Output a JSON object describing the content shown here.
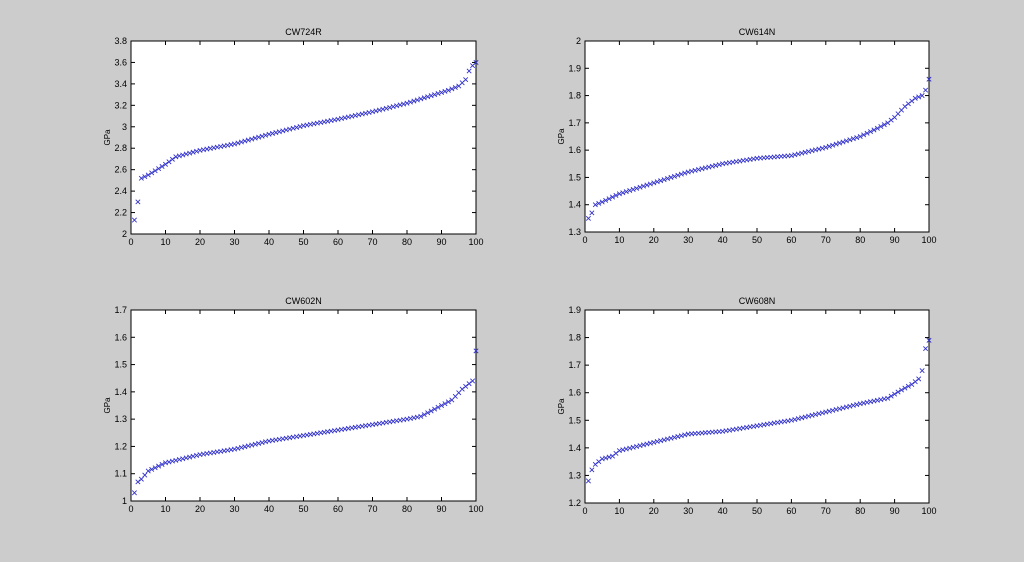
{
  "figure": {
    "background": "#cccccc",
    "marker_color": "#3333cc",
    "marker": "x"
  },
  "chart_data": [
    {
      "type": "scatter",
      "title": "CW724R",
      "ylabel": "GPa",
      "xlabel": "",
      "xlim": [
        0,
        100
      ],
      "ylim": [
        2,
        3.8
      ],
      "xticks": [
        0,
        10,
        20,
        30,
        40,
        50,
        60,
        70,
        80,
        90,
        100
      ],
      "yticks": [
        2,
        2.2,
        2.4,
        2.6,
        2.8,
        3,
        3.2,
        3.4,
        3.6,
        3.8
      ],
      "ytick_labels": [
        "2",
        "2.2",
        "2.4",
        "2.6",
        "2.8",
        "3",
        "3.2",
        "3.4",
        "3.6",
        "3.8"
      ],
      "anchors": [
        [
          1,
          2.13
        ],
        [
          2,
          2.3
        ],
        [
          3,
          2.52
        ],
        [
          5,
          2.55
        ],
        [
          10,
          2.65
        ],
        [
          13,
          2.72
        ],
        [
          20,
          2.78
        ],
        [
          30,
          2.84
        ],
        [
          40,
          2.93
        ],
        [
          50,
          3.01
        ],
        [
          60,
          3.07
        ],
        [
          70,
          3.14
        ],
        [
          80,
          3.22
        ],
        [
          88,
          3.3
        ],
        [
          92,
          3.34
        ],
        [
          95,
          3.38
        ],
        [
          97,
          3.44
        ],
        [
          98,
          3.52
        ],
        [
          99,
          3.57
        ],
        [
          100,
          3.6
        ]
      ]
    },
    {
      "type": "scatter",
      "title": "CW614N",
      "ylabel": "GPa",
      "xlabel": "",
      "xlim": [
        0,
        100
      ],
      "ylim": [
        1.3,
        2
      ],
      "xticks": [
        0,
        10,
        20,
        30,
        40,
        50,
        60,
        70,
        80,
        90,
        100
      ],
      "yticks": [
        1.3,
        1.4,
        1.5,
        1.6,
        1.7,
        1.8,
        1.9,
        2
      ],
      "ytick_labels": [
        "1.3",
        "1.4",
        "1.5",
        "1.6",
        "1.7",
        "1.8",
        "1.9",
        "2"
      ],
      "anchors": [
        [
          1,
          1.35
        ],
        [
          2,
          1.37
        ],
        [
          3,
          1.4
        ],
        [
          5,
          1.41
        ],
        [
          10,
          1.44
        ],
        [
          20,
          1.48
        ],
        [
          30,
          1.52
        ],
        [
          40,
          1.55
        ],
        [
          50,
          1.57
        ],
        [
          60,
          1.58
        ],
        [
          70,
          1.61
        ],
        [
          80,
          1.65
        ],
        [
          85,
          1.68
        ],
        [
          88,
          1.7
        ],
        [
          90,
          1.72
        ],
        [
          93,
          1.76
        ],
        [
          96,
          1.79
        ],
        [
          98,
          1.8
        ],
        [
          99,
          1.82
        ],
        [
          100,
          1.86
        ]
      ]
    },
    {
      "type": "scatter",
      "title": "CW602N",
      "ylabel": "GPa",
      "xlabel": "",
      "xlim": [
        0,
        100
      ],
      "ylim": [
        1,
        1.7
      ],
      "xticks": [
        0,
        10,
        20,
        30,
        40,
        50,
        60,
        70,
        80,
        90,
        100
      ],
      "yticks": [
        1,
        1.1,
        1.2,
        1.3,
        1.4,
        1.5,
        1.6,
        1.7
      ],
      "ytick_labels": [
        "1",
        "1.1",
        "1.2",
        "1.3",
        "1.4",
        "1.5",
        "1.6",
        "1.7"
      ],
      "anchors": [
        [
          1,
          1.03
        ],
        [
          2,
          1.07
        ],
        [
          3,
          1.08
        ],
        [
          5,
          1.11
        ],
        [
          10,
          1.14
        ],
        [
          20,
          1.17
        ],
        [
          30,
          1.19
        ],
        [
          40,
          1.22
        ],
        [
          50,
          1.24
        ],
        [
          60,
          1.26
        ],
        [
          70,
          1.28
        ],
        [
          80,
          1.3
        ],
        [
          84,
          1.31
        ],
        [
          87,
          1.33
        ],
        [
          90,
          1.35
        ],
        [
          93,
          1.37
        ],
        [
          96,
          1.41
        ],
        [
          98,
          1.43
        ],
        [
          99,
          1.44
        ],
        [
          100,
          1.55
        ]
      ]
    },
    {
      "type": "scatter",
      "title": "CW608N",
      "ylabel": "GPa",
      "xlabel": "",
      "xlim": [
        0,
        100
      ],
      "ylim": [
        1.2,
        1.9
      ],
      "xticks": [
        0,
        10,
        20,
        30,
        40,
        50,
        60,
        70,
        80,
        90,
        100
      ],
      "yticks": [
        1.2,
        1.3,
        1.4,
        1.5,
        1.6,
        1.7,
        1.8,
        1.9
      ],
      "ytick_labels": [
        "1.2",
        "1.3",
        "1.4",
        "1.5",
        "1.6",
        "1.7",
        "1.8",
        "1.9"
      ],
      "anchors": [
        [
          1,
          1.28
        ],
        [
          2,
          1.32
        ],
        [
          3,
          1.34
        ],
        [
          5,
          1.36
        ],
        [
          8,
          1.37
        ],
        [
          10,
          1.39
        ],
        [
          20,
          1.42
        ],
        [
          30,
          1.45
        ],
        [
          40,
          1.46
        ],
        [
          50,
          1.48
        ],
        [
          60,
          1.5
        ],
        [
          70,
          1.53
        ],
        [
          80,
          1.56
        ],
        [
          88,
          1.58
        ],
        [
          92,
          1.61
        ],
        [
          95,
          1.63
        ],
        [
          97,
          1.65
        ],
        [
          98,
          1.68
        ],
        [
          99,
          1.76
        ],
        [
          100,
          1.79
        ]
      ]
    }
  ]
}
